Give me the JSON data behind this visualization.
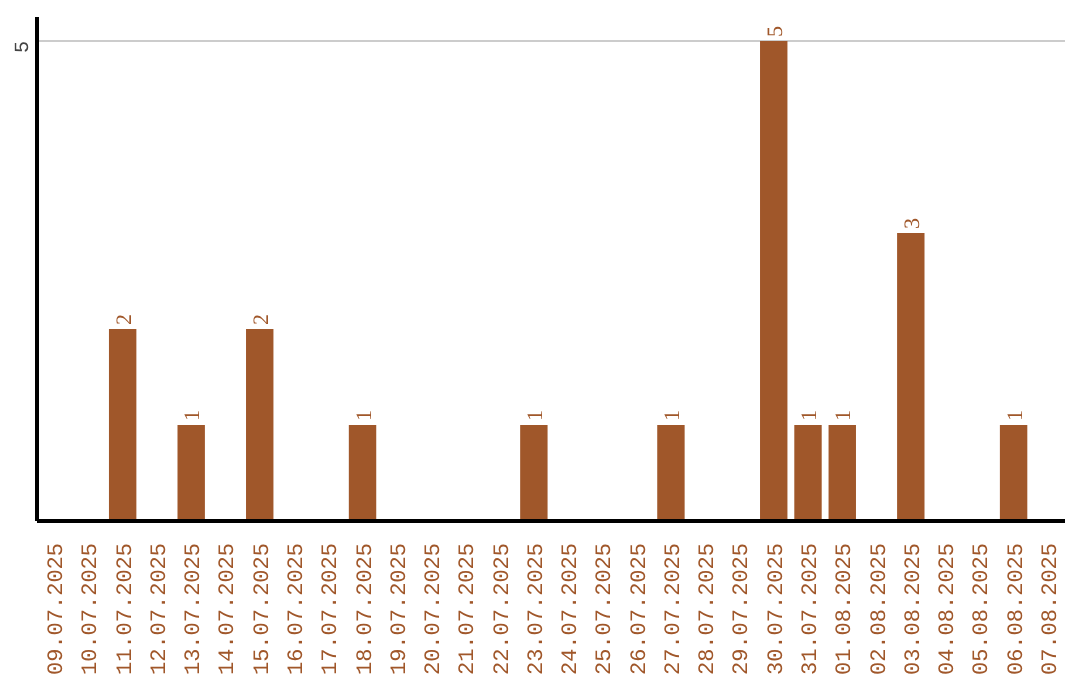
{
  "chart_data": {
    "type": "bar",
    "categories": [
      "09.07.2025",
      "10.07.2025",
      "11.07.2025",
      "12.07.2025",
      "13.07.2025",
      "14.07.2025",
      "15.07.2025",
      "16.07.2025",
      "17.07.2025",
      "18.07.2025",
      "19.07.2025",
      "20.07.2025",
      "21.07.2025",
      "22.07.2025",
      "23.07.2025",
      "24.07.2025",
      "25.07.2025",
      "26.07.2025",
      "27.07.2025",
      "28.07.2025",
      "29.07.2025",
      "30.07.2025",
      "31.07.2025",
      "01.08.2025",
      "02.08.2025",
      "03.08.2025",
      "04.08.2025",
      "05.08.2025",
      "06.08.2025",
      "07.08.2025"
    ],
    "values": [
      0,
      0,
      2,
      0,
      1,
      0,
      2,
      0,
      0,
      1,
      0,
      0,
      0,
      0,
      1,
      0,
      0,
      0,
      1,
      0,
      0,
      5,
      1,
      1,
      0,
      3,
      0,
      0,
      1,
      0
    ],
    "value_labels": [
      null,
      null,
      "2",
      null,
      "1",
      null,
      "2",
      null,
      null,
      "1",
      null,
      null,
      null,
      null,
      "1",
      null,
      null,
      null,
      "1",
      null,
      null,
      "5",
      "1",
      "1",
      null,
      "3",
      null,
      null,
      "1",
      null
    ],
    "color": "#a0572a",
    "ylim": [
      0,
      5.25
    ],
    "yticks": [
      5
    ],
    "grid": "y"
  }
}
